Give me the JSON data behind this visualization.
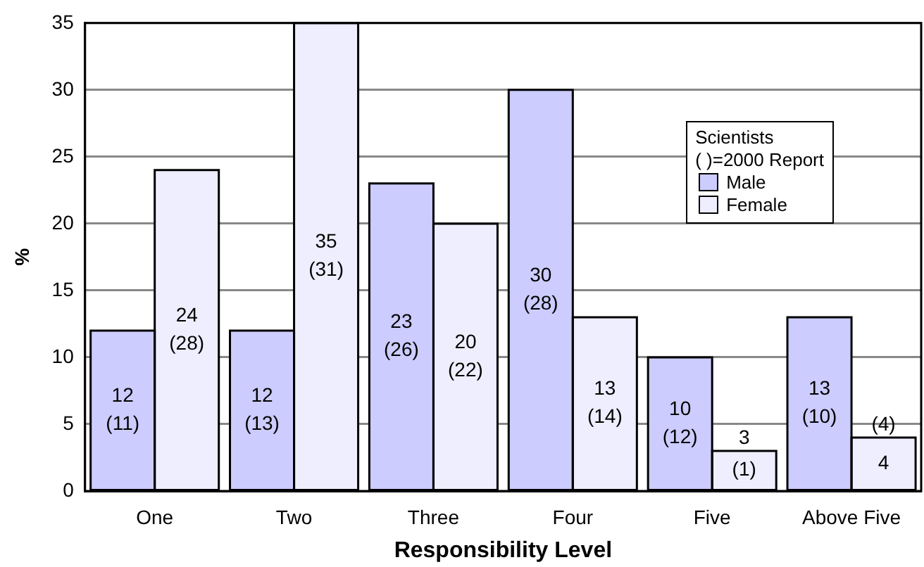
{
  "chart_data": {
    "type": "bar",
    "xlabel": "Responsibility Level",
    "ylabel": "%",
    "legend_title": "Scientists",
    "annotations": [
      "( )=2000 Report"
    ],
    "categories": [
      "One",
      "Two",
      "Three",
      "Four",
      "Five",
      "Above Five"
    ],
    "series": [
      {
        "name": "Male",
        "color": "#ccccff",
        "values": [
          12,
          12,
          23,
          30,
          10,
          13
        ],
        "value_labels": [
          "12\n(11)",
          "12\n(13)",
          "23\n(26)",
          "30\n(28)",
          "10\n(12)",
          "13\n(10)"
        ]
      },
      {
        "name": "Female",
        "color": "#eeeeff",
        "values": [
          24,
          35,
          20,
          13,
          3,
          4
        ],
        "value_labels": [
          "24\n(28)",
          "35\n(31)",
          "20\n(22)",
          "13\n(14)",
          "3\n(1)",
          "(4)\n4"
        ]
      }
    ],
    "ylim": [
      0,
      35
    ],
    "yticks": [
      0,
      5,
      10,
      15,
      20,
      25,
      30,
      35
    ],
    "grid": "y",
    "legend": "top right"
  }
}
